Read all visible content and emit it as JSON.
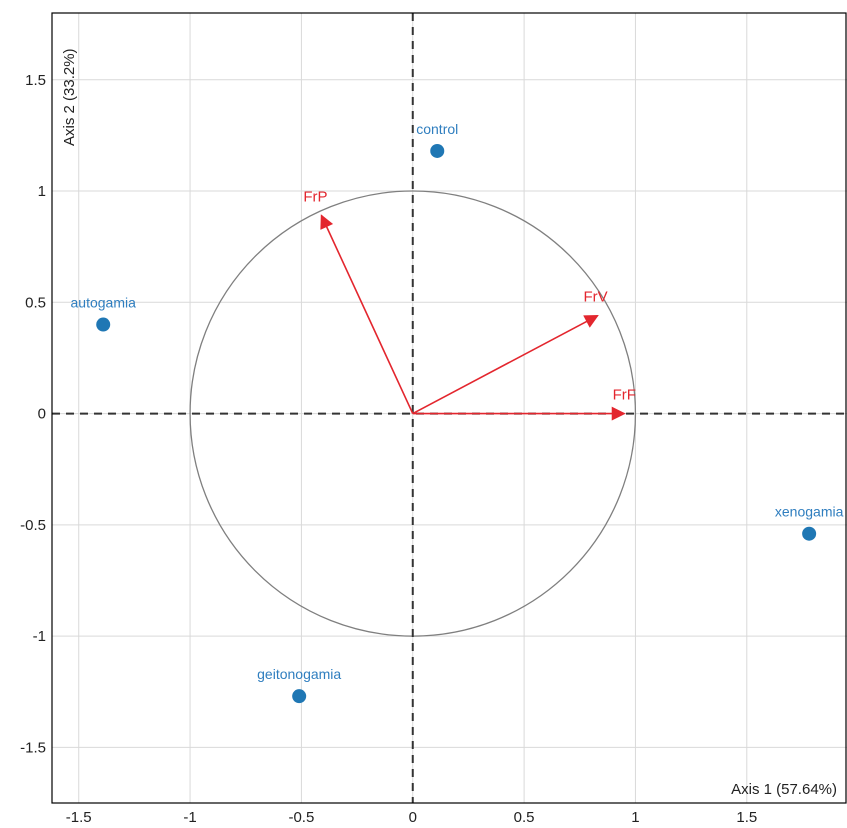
{
  "chart_data": {
    "type": "scatter",
    "subtype": "pca-biplot",
    "xlabel": "Axis 1 (57.64%)",
    "ylabel": "Axis 2 (33.2%)",
    "xlim": [
      -1.62,
      1.95
    ],
    "ylim": [
      -1.75,
      1.8
    ],
    "x_ticks": [
      -1.5,
      -1,
      -0.5,
      0,
      0.5,
      1,
      1.5
    ],
    "x_tick_labels": [
      "-1.5",
      "-1",
      "-0.5",
      "0",
      "0.5",
      "1",
      "1.5"
    ],
    "y_ticks": [
      1.5,
      1,
      0.5,
      0,
      -0.5,
      -1,
      -1.5
    ],
    "y_tick_labels": [
      "1.5",
      "1",
      "0.5",
      "0",
      "-0.5",
      "-1",
      "-1.5"
    ],
    "grid": true,
    "reference_lines": "dashed lines at x=0 and y=0",
    "correlation_circle_radius": 1,
    "points": [
      {
        "label": "control",
        "x": 0.11,
        "y": 1.18
      },
      {
        "label": "autogamia",
        "x": -1.39,
        "y": 0.4
      },
      {
        "label": "xenogamia",
        "x": 1.78,
        "y": -0.54
      },
      {
        "label": "geitonogamia",
        "x": -0.51,
        "y": -1.27
      }
    ],
    "vectors": [
      {
        "label": "FrP",
        "x": -0.41,
        "y": 0.89
      },
      {
        "label": "FrV",
        "x": 0.83,
        "y": 0.44
      },
      {
        "label": "FrF",
        "x": 0.95,
        "y": 0.0
      }
    ],
    "colors": {
      "points": "#1f77b4",
      "point_labels": "#2f7ebf",
      "vectors": "#e3262e",
      "grid": "#d9d9d9",
      "circle": "#7f7f7f",
      "reference": "#333333",
      "frame": "#000000"
    }
  }
}
